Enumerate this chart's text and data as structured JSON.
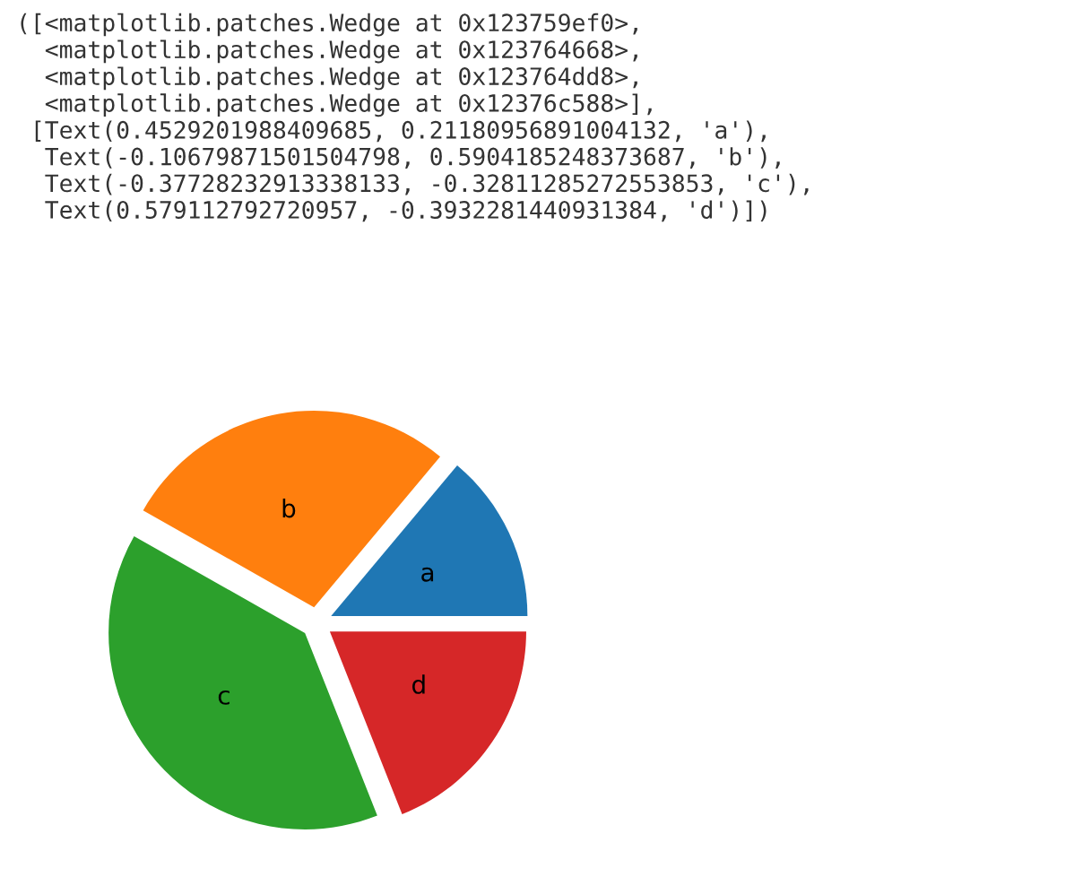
{
  "chart_data": {
    "type": "pie",
    "categories": [
      "a",
      "b",
      "c",
      "d"
    ],
    "values": [
      13.9,
      27.9,
      39.2,
      19.0
    ],
    "colors": [
      "#1f77b4",
      "#ff7f0e",
      "#2ca02c",
      "#d62728"
    ],
    "annotations": [
      "([<matplotlib.patches.Wedge at 0x123759ef0>,\n  <matplotlib.patches.Wedge at 0x123764668>,\n  <matplotlib.patches.Wedge at 0x123764dd8>,\n  <matplotlib.patches.Wedge at 0x12376c588>],\n [Text(0.4529201988409685, 0.21180956891004132, 'a'),\n  Text(-0.10679871501504798, 0.5904185248373687, 'b'),\n  Text(-0.37728232913338133, -0.32811285272553853, 'c'),\n  Text(0.579112792720957, -0.3932281440931384, 'd')])"
    ]
  }
}
